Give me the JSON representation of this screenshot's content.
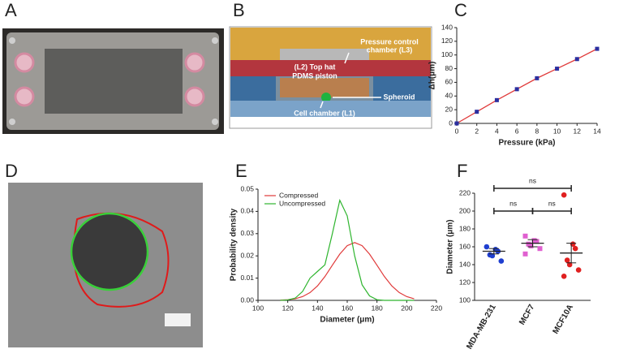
{
  "panel_labels": [
    "A",
    "B",
    "C",
    "D",
    "E",
    "F"
  ],
  "diagram_labels": {
    "pressure_chamber": [
      "Pressure control",
      "chamber (L3)"
    ],
    "piston": [
      "(L2) Top hat",
      "PDMS piston"
    ],
    "spheroid": "Spheroid",
    "cell_chamber": "Cell chamber (L1)"
  },
  "chart_data": [
    {
      "type": "line",
      "x": [
        0,
        2,
        4,
        6,
        8,
        10,
        12,
        14
      ],
      "values": [
        0,
        17,
        34,
        50,
        66,
        80,
        94,
        109
      ],
      "marker_color": "#2b2fa0",
      "line_color": "#e03a3a",
      "xlim": [
        0,
        14
      ],
      "ylim": [
        0,
        140
      ],
      "xticks": [
        0,
        2,
        4,
        6,
        8,
        10,
        12,
        14
      ],
      "yticks": [
        0,
        20,
        40,
        60,
        80,
        100,
        120,
        140
      ],
      "xlabel": "Pressure (kPa)",
      "ylabel": "Δh(μm)"
    },
    {
      "type": "density",
      "x": [
        115,
        120,
        125,
        130,
        135,
        140,
        145,
        150,
        155,
        160,
        165,
        170,
        175,
        180,
        185,
        190,
        195,
        200,
        205
      ],
      "series": [
        {
          "name": "Compressed",
          "color": "#e03a3a",
          "values": [
            0.0001,
            0.0003,
            0.0007,
            0.0017,
            0.0035,
            0.0065,
            0.0107,
            0.0158,
            0.0208,
            0.0246,
            0.026,
            0.0246,
            0.0208,
            0.0158,
            0.0107,
            0.0065,
            0.0035,
            0.0017,
            0.0007
          ]
        },
        {
          "name": "Uncompressed",
          "color": "#2fb52f",
          "values": [
            0,
            0.0002,
            0.001,
            0.004,
            0.01,
            0.013,
            0.016,
            0.03,
            0.045,
            0.038,
            0.02,
            0.007,
            0.002,
            0.0003,
            0,
            0,
            0,
            0,
            0
          ]
        }
      ],
      "xlim": [
        100,
        220
      ],
      "ylim": [
        0,
        0.05
      ],
      "xticks": [
        100,
        120,
        140,
        160,
        180,
        200,
        220
      ],
      "yticks": [
        {
          "value": 0,
          "label": "0.00"
        },
        {
          "value": 0.01,
          "label": "0.01"
        },
        0.02,
        0.03,
        0.04,
        0.05
      ],
      "xlabel": "Diameter (μm)",
      "ylabel": "Probability density",
      "legend": "upper left"
    },
    {
      "type": "dot",
      "categories": [
        "MDA-MB-231",
        "MCF7",
        "MCF10A"
      ],
      "groups": [
        {
          "color": "#1f3fd0",
          "values": [
            160,
            157,
            155,
            151,
            150,
            144
          ],
          "mean": 155,
          "sem": 3
        },
        {
          "color": "#e060d0",
          "values": [
            172,
            167,
            166,
            163,
            161,
            158,
            152
          ],
          "mean": 164,
          "sem": 4
        },
        {
          "color": "#e02020",
          "values": [
            218,
            163,
            158,
            145,
            140,
            134,
            127
          ],
          "mean": 153,
          "sem": 11
        }
      ],
      "comparisons": [
        {
          "from": 0,
          "to": 2,
          "label": "ns"
        },
        {
          "from": 0,
          "to": 1,
          "label": "ns"
        },
        {
          "from": 1,
          "to": 2,
          "label": "ns"
        }
      ],
      "ylim": [
        100,
        220
      ],
      "yticks": [
        100,
        120,
        140,
        160,
        180,
        200,
        220
      ],
      "ylabel": "Diameter (μm)"
    }
  ]
}
